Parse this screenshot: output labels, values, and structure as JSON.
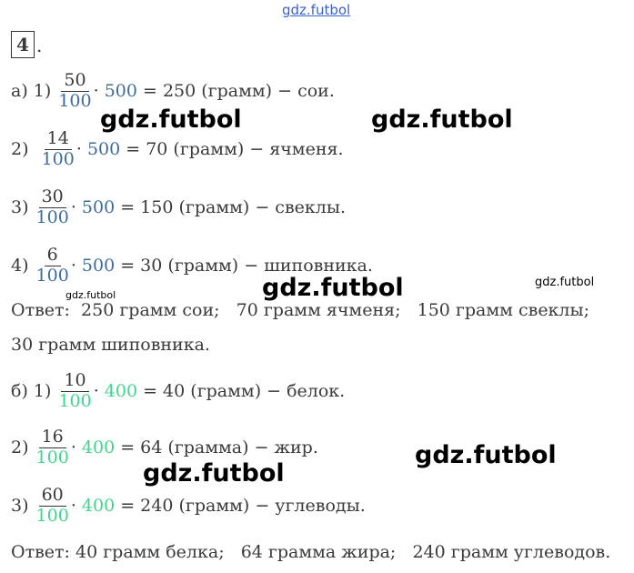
{
  "header_watermark": "gdz.futbol",
  "task_number": "4",
  "task_number_suffix": ".",
  "part_a": [
    {
      "prefix": "а) 1) ",
      "num": "50",
      "den": "100",
      "mult": "500",
      "tail": " = 250 (грамм) − сои."
    },
    {
      "prefix": "2)  ",
      "num": "14",
      "den": "100",
      "mult": "500",
      "tail": " = 70 (грамм) − ячменя."
    },
    {
      "prefix": "3) ",
      "num": "30",
      "den": "100",
      "mult": "500",
      "tail": " = 150 (грамм) − свеклы."
    },
    {
      "prefix": "4) ",
      "num": "6",
      "den": "100",
      "mult": "500",
      "tail": " = 30 (грамм) − шиповника."
    }
  ],
  "answer_a_line1": "Ответ:  250 грамм сои;   70 грамм ячменя;   150 грамм свеклы;",
  "answer_a_line2": "30 грамм шиповника.",
  "part_b": [
    {
      "prefix": "б) 1) ",
      "num": "10",
      "den": "100",
      "mult": "400",
      "tail": " = 40 (грамм) − белок."
    },
    {
      "prefix": "2) ",
      "num": "16",
      "den": "100",
      "mult": "400",
      "tail": " = 64 (грамма) − жир."
    },
    {
      "prefix": "3) ",
      "num": "60",
      "den": "100",
      "mult": "400",
      "tail": " = 240 (грамм) − углеводы."
    }
  ],
  "answer_b": "Ответ: 40 грамм белка;   64 грамма жира;   240 грамм углеводов.",
  "dot": "· ",
  "watermark": "gdz.futbol",
  "colors": {
    "part_a_accent": "#3d6b9a",
    "part_b_accent": "#3dd68c",
    "watermark_top": "#3b5fd0"
  }
}
